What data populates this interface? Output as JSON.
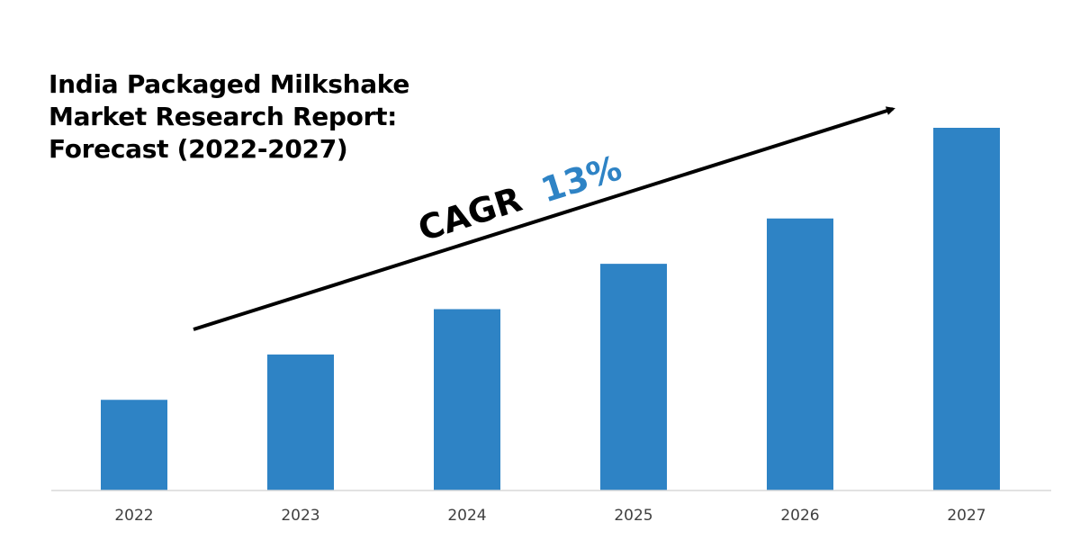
{
  "title_lines": [
    "India Packaged Milkshake",
    "Market Research Report:",
    "Forecast (2022-2027)"
  ],
  "annotation": {
    "label": "CAGR",
    "value": "13%",
    "value_color": "#2e83c5"
  },
  "chart_data": {
    "type": "bar",
    "categories": [
      "2022",
      "2023",
      "2024",
      "2025",
      "2026",
      "2027"
    ],
    "values": [
      1.0,
      1.5,
      2.0,
      2.5,
      3.0,
      4.0
    ],
    "bar_color": "#2e83c5",
    "grid": false,
    "legend": "none",
    "yaxis_visible": false
  }
}
